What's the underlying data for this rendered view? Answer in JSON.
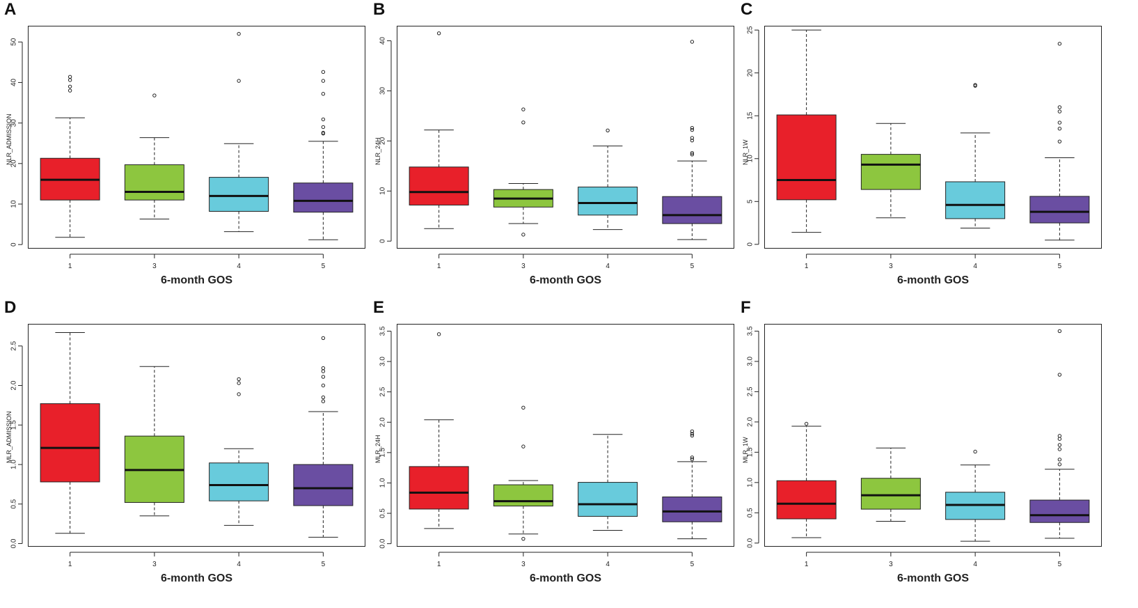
{
  "chart_data": [
    {
      "panel": "A",
      "type": "box",
      "ylabel": "NLR_ADMISSION",
      "xlabel": "6-month GOS",
      "ylim": [
        -1,
        54
      ],
      "yticks": [
        0,
        10,
        20,
        30,
        40,
        50
      ],
      "categories": [
        "1",
        "3",
        "4",
        "5"
      ],
      "boxes": [
        {
          "color": "#e8202a",
          "whisker_low": 1.8,
          "q1": 11.0,
          "median": 16.0,
          "q3": 21.3,
          "whisker_high": 31.3,
          "outliers": [
            38.0,
            39.0,
            40.6,
            41.4
          ]
        },
        {
          "color": "#8dc63f",
          "whisker_low": 6.3,
          "q1": 11.0,
          "median": 13.0,
          "q3": 19.7,
          "whisker_high": 26.4,
          "outliers": [
            36.8
          ]
        },
        {
          "color": "#68cbdc",
          "whisker_low": 3.2,
          "q1": 8.2,
          "median": 12.0,
          "q3": 16.6,
          "whisker_high": 24.9,
          "outliers": [
            40.4,
            52.0
          ]
        },
        {
          "color": "#6a4ea2",
          "whisker_low": 1.2,
          "q1": 8.0,
          "median": 10.8,
          "q3": 15.2,
          "whisker_high": 25.5,
          "outliers": [
            27.4,
            27.6,
            29.0,
            30.9,
            37.2,
            40.4,
            42.6
          ]
        }
      ]
    },
    {
      "panel": "B",
      "type": "box",
      "ylabel": "NLR_24H",
      "xlabel": "6-month GOS",
      "ylim": [
        -1.5,
        43
      ],
      "yticks": [
        0,
        10,
        20,
        30,
        40
      ],
      "categories": [
        "1",
        "3",
        "4",
        "5"
      ],
      "boxes": [
        {
          "color": "#e8202a",
          "whisker_low": 2.5,
          "q1": 7.2,
          "median": 9.8,
          "q3": 14.8,
          "whisker_high": 22.2,
          "outliers": [
            41.5
          ]
        },
        {
          "color": "#8dc63f",
          "whisker_low": 3.5,
          "q1": 6.8,
          "median": 8.5,
          "q3": 10.3,
          "whisker_high": 11.5,
          "outliers": [
            1.3,
            23.7,
            26.3
          ]
        },
        {
          "color": "#68cbdc",
          "whisker_low": 2.3,
          "q1": 5.2,
          "median": 7.6,
          "q3": 10.8,
          "whisker_high": 19.0,
          "outliers": [
            22.1
          ]
        },
        {
          "color": "#6a4ea2",
          "whisker_low": 0.3,
          "q1": 3.5,
          "median": 5.2,
          "q3": 8.9,
          "whisker_high": 16.0,
          "outliers": [
            17.3,
            17.6,
            20.1,
            20.6,
            22.2,
            22.6,
            39.8
          ]
        }
      ]
    },
    {
      "panel": "C",
      "type": "box",
      "ylabel": "NLR_1W",
      "xlabel": "6-month GOS",
      "ylim": [
        -0.5,
        25.5
      ],
      "yticks": [
        0,
        5,
        10,
        15,
        20,
        25
      ],
      "categories": [
        "1",
        "3",
        "4",
        "5"
      ],
      "boxes": [
        {
          "color": "#e8202a",
          "whisker_low": 1.4,
          "q1": 5.2,
          "median": 7.5,
          "q3": 15.1,
          "whisker_high": 25.0,
          "outliers": []
        },
        {
          "color": "#8dc63f",
          "whisker_low": 3.1,
          "q1": 6.4,
          "median": 9.3,
          "q3": 10.5,
          "whisker_high": 14.1,
          "outliers": []
        },
        {
          "color": "#68cbdc",
          "whisker_low": 1.9,
          "q1": 3.0,
          "median": 4.6,
          "q3": 7.3,
          "whisker_high": 13.0,
          "outliers": [
            18.5,
            18.6
          ]
        },
        {
          "color": "#6a4ea2",
          "whisker_low": 0.5,
          "q1": 2.5,
          "median": 3.8,
          "q3": 5.6,
          "whisker_high": 10.1,
          "outliers": [
            12.0,
            13.5,
            14.2,
            15.5,
            16.0,
            23.4
          ]
        }
      ]
    },
    {
      "panel": "D",
      "type": "box",
      "ylabel": "MLR_ADMISSION",
      "xlabel": "6-month GOS",
      "ylim": [
        -0.04,
        2.78
      ],
      "yticks": [
        "0.0",
        "0.5",
        "1.0",
        "1.5",
        "2.0",
        "2.5"
      ],
      "categories": [
        "1",
        "3",
        "4",
        "5"
      ],
      "boxes": [
        {
          "color": "#e8202a",
          "whisker_low": 0.13,
          "q1": 0.78,
          "median": 1.21,
          "q3": 1.77,
          "whisker_high": 2.67,
          "outliers": []
        },
        {
          "color": "#8dc63f",
          "whisker_low": 0.35,
          "q1": 0.52,
          "median": 0.93,
          "q3": 1.36,
          "whisker_high": 2.24,
          "outliers": []
        },
        {
          "color": "#68cbdc",
          "whisker_low": 0.23,
          "q1": 0.54,
          "median": 0.74,
          "q3": 1.02,
          "whisker_high": 1.2,
          "outliers": [
            1.89,
            2.03,
            2.08
          ]
        },
        {
          "color": "#6a4ea2",
          "whisker_low": 0.08,
          "q1": 0.48,
          "median": 0.7,
          "q3": 1.0,
          "whisker_high": 1.67,
          "outliers": [
            1.8,
            1.85,
            2.0,
            2.11,
            2.18,
            2.22,
            2.6
          ]
        }
      ]
    },
    {
      "panel": "E",
      "type": "box",
      "ylabel": "MLR_24H",
      "xlabel": "6-month GOS",
      "ylim": [
        -0.05,
        3.62
      ],
      "yticks": [
        "0.0",
        "0.5",
        "1.0",
        "1.5",
        "2.0",
        "2.5",
        "3.0",
        "3.5"
      ],
      "categories": [
        "1",
        "3",
        "4",
        "5"
      ],
      "boxes": [
        {
          "color": "#e8202a",
          "whisker_low": 0.25,
          "q1": 0.57,
          "median": 0.84,
          "q3": 1.27,
          "whisker_high": 2.04,
          "outliers": [
            3.45
          ]
        },
        {
          "color": "#8dc63f",
          "whisker_low": 0.16,
          "q1": 0.62,
          "median": 0.7,
          "q3": 0.97,
          "whisker_high": 1.04,
          "outliers": [
            0.08,
            1.6,
            2.24
          ]
        },
        {
          "color": "#68cbdc",
          "whisker_low": 0.22,
          "q1": 0.45,
          "median": 0.65,
          "q3": 1.01,
          "whisker_high": 1.8,
          "outliers": []
        },
        {
          "color": "#6a4ea2",
          "whisker_low": 0.08,
          "q1": 0.36,
          "median": 0.53,
          "q3": 0.77,
          "whisker_high": 1.35,
          "outliers": [
            1.39,
            1.42,
            1.78,
            1.81,
            1.85
          ]
        }
      ]
    },
    {
      "panel": "F",
      "type": "box",
      "ylabel": "MLR_1W",
      "xlabel": "6-month GOS",
      "ylim": [
        -0.06,
        3.62
      ],
      "yticks": [
        "0.0",
        "0.5",
        "1.0",
        "1.5",
        "2.0",
        "2.5",
        "3.0",
        "3.5"
      ],
      "categories": [
        "1",
        "3",
        "4",
        "5"
      ],
      "boxes": [
        {
          "color": "#e8202a",
          "whisker_low": 0.09,
          "q1": 0.4,
          "median": 0.65,
          "q3": 1.03,
          "whisker_high": 1.93,
          "outliers": [
            1.97
          ]
        },
        {
          "color": "#8dc63f",
          "whisker_low": 0.36,
          "q1": 0.56,
          "median": 0.79,
          "q3": 1.07,
          "whisker_high": 1.57,
          "outliers": []
        },
        {
          "color": "#68cbdc",
          "whisker_low": 0.03,
          "q1": 0.39,
          "median": 0.63,
          "q3": 0.84,
          "whisker_high": 1.29,
          "outliers": [
            1.51
          ]
        },
        {
          "color": "#6a4ea2",
          "whisker_low": 0.08,
          "q1": 0.34,
          "median": 0.46,
          "q3": 0.71,
          "whisker_high": 1.22,
          "outliers": [
            1.3,
            1.38,
            1.55,
            1.62,
            1.72,
            1.77,
            2.78,
            3.5
          ]
        }
      ]
    }
  ]
}
